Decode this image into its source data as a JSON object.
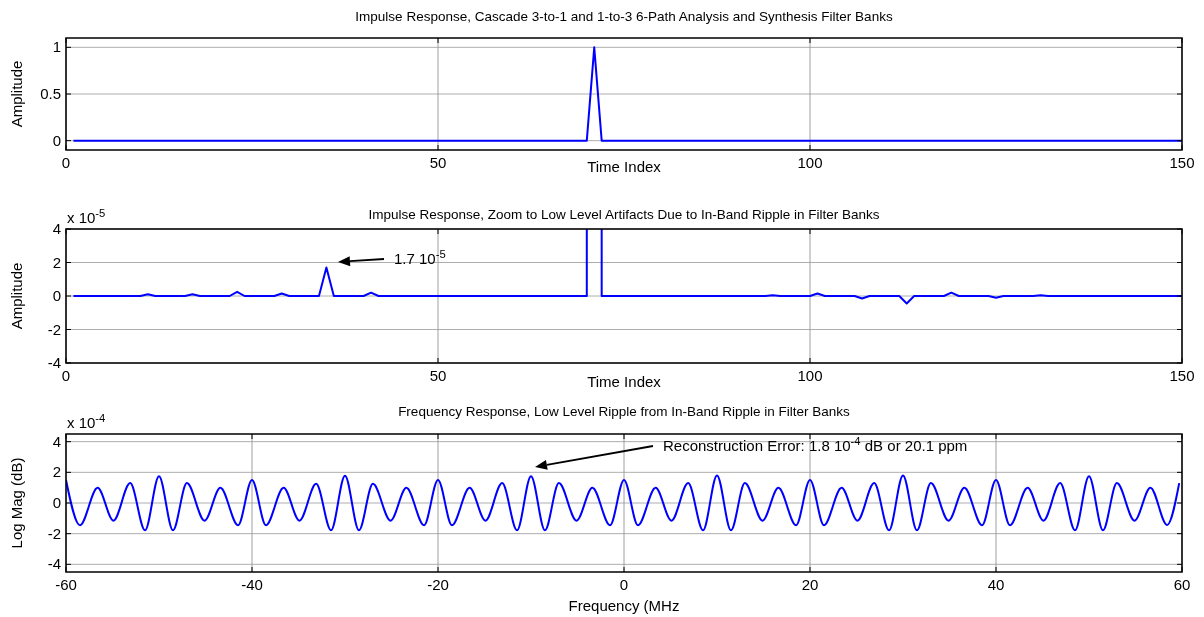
{
  "chart_data": [
    {
      "type": "line",
      "title": "Impulse Response, Cascade 3-to-1 and 1-to-3 6-Path Analysis and Synthesis Filter Banks",
      "xlabel": "Time Index",
      "ylabel": "Amplitude",
      "xlim": [
        0,
        150
      ],
      "xticks": [
        0,
        50,
        100,
        150
      ],
      "ylim": [
        -0.1,
        1.1
      ],
      "yticks": [
        0,
        0.5,
        1
      ],
      "grid": true,
      "series": [
        {
          "color": "#0000ff",
          "x": [
            1,
            70,
            71,
            72,
            150
          ],
          "values": [
            0,
            0,
            1,
            0,
            0
          ]
        }
      ]
    },
    {
      "type": "line",
      "title": "Impulse Response, Zoom to Low Level Artifacts Due to In-Band Ripple in Filter Banks",
      "xlabel": "Time Index",
      "ylabel": "Amplitude",
      "xlim": [
        0,
        150
      ],
      "xticks": [
        0,
        50,
        100,
        150
      ],
      "ylim": [
        -4,
        4
      ],
      "yticks": [
        -4,
        -2,
        0,
        2,
        4
      ],
      "grid": true,
      "annotations": [
        "x 10$^{-5}$",
        "1.7 10$^{-5}$"
      ],
      "series": [
        {
          "color": "#0000ff",
          "x": [
            1,
            10,
            11,
            12,
            16,
            17,
            18,
            22,
            23,
            24,
            28,
            29,
            30,
            34,
            35,
            36,
            40,
            41,
            42,
            70,
            70,
            71,
            72,
            72,
            94,
            95,
            96,
            100,
            101,
            102,
            106,
            107,
            108,
            112,
            113,
            114,
            118,
            119,
            120,
            124,
            125,
            126,
            130,
            131,
            132,
            150
          ],
          "values": [
            0,
            0,
            0.1,
            0,
            0,
            0.1,
            0,
            0,
            0.25,
            0,
            0,
            0.15,
            0,
            0,
            1.7,
            0,
            0,
            0.2,
            0,
            0,
            4,
            null,
            4,
            0,
            0,
            0.05,
            0,
            0,
            0.15,
            0,
            0,
            -0.15,
            0,
            0,
            -0.45,
            0,
            0,
            0.2,
            0,
            0,
            -0.1,
            0,
            0,
            0.05,
            0,
            0
          ]
        }
      ]
    },
    {
      "type": "line",
      "title": "Frequency Response, Low Level Ripple from In-Band Ripple in Filter Banks",
      "xlabel": "Frequency (MHz",
      "ylabel": "Log Mag (dB)",
      "xlim": [
        -60,
        60
      ],
      "xticks": [
        -60,
        -40,
        -20,
        0,
        20,
        40,
        60
      ],
      "ylim": [
        -4.5,
        4.5
      ],
      "yticks": [
        -4,
        -2,
        0,
        2,
        4
      ],
      "grid": true,
      "annotations": [
        "x 10$^{-4}$",
        "Reconstruction Error: 1.8 10$^{-4}$ dB or 20.1 ppm"
      ],
      "series": [
        {
          "color": "#0000ff",
          "x": [
            -60,
            -58.5,
            -56.6,
            -54.9,
            -53.1,
            -51.5,
            -50,
            -48.5,
            -47,
            -45.1,
            -43.4,
            -41.5,
            -40,
            -38.5,
            -36.6,
            -34.9,
            -33.1,
            -31.5,
            -30,
            -28.5,
            -27,
            -25.1,
            -23.4,
            -21.5,
            -20,
            -18.5,
            -16.6,
            -14.9,
            -13.1,
            -11.5,
            -10,
            -8.5,
            -7,
            -5.1,
            -3.4,
            -1.5,
            0,
            1.5,
            3.4,
            5.1,
            6.9,
            8.5,
            10,
            11.5,
            13,
            14.9,
            16.6,
            18.5,
            20,
            21.5,
            23.4,
            25.1,
            26.9,
            28.5,
            30,
            31.5,
            33,
            34.9,
            36.6,
            38.5,
            40,
            41.5,
            43.4,
            45.1,
            46.9,
            48.5,
            50,
            51.5,
            53,
            54.9,
            56.6,
            58.4,
            59.7
          ],
          "values": [
            1.5,
            -1.45,
            1.0,
            -1.15,
            1.3,
            -1.78,
            1.75,
            -1.78,
            1.3,
            -1.15,
            1.0,
            -1.45,
            1.5,
            -1.45,
            1.0,
            -1.15,
            1.25,
            -1.78,
            1.78,
            -1.78,
            1.25,
            -1.15,
            1.0,
            -1.45,
            1.5,
            -1.45,
            1.0,
            -1.15,
            1.3,
            -1.78,
            1.75,
            -1.78,
            1.3,
            -1.15,
            1.0,
            -1.45,
            1.5,
            -1.45,
            1.0,
            -1.15,
            1.3,
            -1.78,
            1.8,
            -1.78,
            1.3,
            -1.15,
            1.0,
            -1.45,
            1.5,
            -1.45,
            1.0,
            -1.15,
            1.3,
            -1.78,
            1.8,
            -1.78,
            1.3,
            -1.15,
            1.0,
            -1.45,
            1.5,
            -1.45,
            1.0,
            -1.15,
            1.3,
            -1.78,
            1.75,
            -1.78,
            1.3,
            -1.15,
            1.0,
            -1.43,
            1.3
          ]
        }
      ]
    }
  ]
}
